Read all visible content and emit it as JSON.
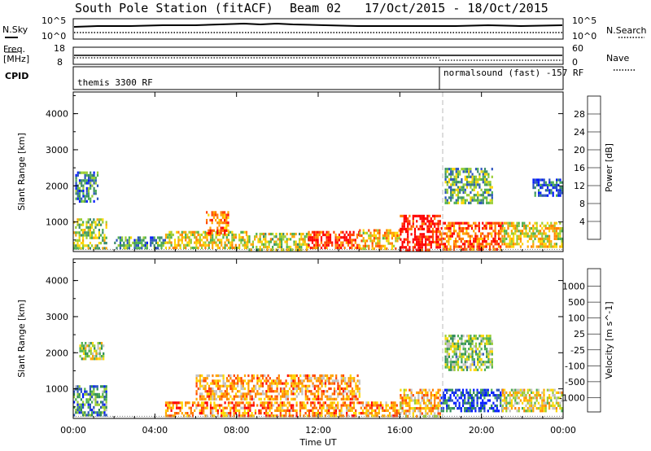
{
  "header": {
    "station": "South Pole Station (fitACF)",
    "beam": "Beam 02",
    "dates": "17/Oct/2015 - 18/Oct/2015"
  },
  "nsky_panel": {
    "left_label": "N.Sky",
    "left_ticks": [
      "10^5",
      "10^0"
    ],
    "right_label": "N.Search",
    "right_ticks": [
      "10^5",
      "10^0"
    ]
  },
  "freq_panel": {
    "left_label_line1": "Freq.",
    "left_label_line2": "[MHz]",
    "left_ticks": [
      "18",
      "8"
    ],
    "right_label": "Nave",
    "right_ticks": [
      "60",
      "0"
    ]
  },
  "cpid_panel": {
    "label": "CPID",
    "mode_1": "themis 3300 RF",
    "mode_2": "normalsound (fast) -157 RF"
  },
  "chart_data": [
    {
      "type": "heatmap",
      "title": "",
      "xlabel": "Time UT",
      "ylabel": "Slant Range [km]",
      "xticks": [
        "00:00",
        "04:00",
        "08:00",
        "12:00",
        "16:00",
        "20:00",
        "00:00"
      ],
      "yticks": [
        "1000",
        "2000",
        "3000",
        "4000"
      ],
      "ylim": [
        180,
        4600
      ],
      "xlim_hours": [
        0,
        24
      ],
      "colorbar_label": "Power [dB]",
      "colorbar_ticks": [
        "4",
        "8",
        "12",
        "16",
        "20",
        "24",
        "28"
      ],
      "colorbar_colors": [
        "#0018ff",
        "#2a52be",
        "#3a8a6a",
        "#4caf50",
        "#9acd32",
        "#ffd700",
        "#ffa500",
        "#ff7f00",
        "#ff4500",
        "#ff0000"
      ],
      "mode_change_hour": 18.1,
      "regions": [
        {
          "t0": 0.0,
          "t1": 1.6,
          "r0": 250,
          "r1": 1100,
          "level": 0.45
        },
        {
          "t0": 0.1,
          "t1": 1.2,
          "r0": 1600,
          "r1": 2400,
          "level": 0.25
        },
        {
          "t0": 2.0,
          "t1": 4.5,
          "r0": 300,
          "r1": 600,
          "level": 0.3
        },
        {
          "t0": 4.5,
          "t1": 8.5,
          "r0": 250,
          "r1": 750,
          "level": 0.55
        },
        {
          "t0": 6.5,
          "t1": 7.6,
          "r0": 700,
          "r1": 1300,
          "level": 0.75
        },
        {
          "t0": 8.5,
          "t1": 11.5,
          "r0": 250,
          "r1": 700,
          "level": 0.5
        },
        {
          "t0": 11.5,
          "t1": 14.0,
          "r0": 250,
          "r1": 750,
          "level": 0.85
        },
        {
          "t0": 14.0,
          "t1": 16.0,
          "r0": 250,
          "r1": 800,
          "level": 0.6
        },
        {
          "t0": 16.0,
          "t1": 18.0,
          "r0": 250,
          "r1": 1200,
          "level": 0.95
        },
        {
          "t0": 18.0,
          "t1": 21.0,
          "r0": 250,
          "r1": 1000,
          "level": 0.8
        },
        {
          "t0": 21.0,
          "t1": 24.0,
          "r0": 300,
          "r1": 1000,
          "level": 0.55
        },
        {
          "t0": 18.2,
          "t1": 20.5,
          "r0": 1500,
          "r1": 2500,
          "level": 0.35
        },
        {
          "t0": 22.5,
          "t1": 24.0,
          "r0": 1700,
          "r1": 2200,
          "level": 0.15
        }
      ]
    },
    {
      "type": "heatmap",
      "title": "",
      "xlabel": "Time UT",
      "ylabel": "Slant Range [km]",
      "xticks": [
        "00:00",
        "04:00",
        "08:00",
        "12:00",
        "16:00",
        "20:00",
        "00:00"
      ],
      "yticks": [
        "1000",
        "2000",
        "3000",
        "4000"
      ],
      "ylim": [
        180,
        4600
      ],
      "xlim_hours": [
        0,
        24
      ],
      "colorbar_label": "Velocity [m s^-1]",
      "colorbar_ticks": [
        "1000",
        "500",
        "100",
        "25",
        "-25",
        "-100",
        "-500",
        "-1000"
      ],
      "colorbar_colors": [
        "#0018ff",
        "#2a52be",
        "#2e8b57",
        "#4caf50",
        "#9acd32",
        "#c0c0c0",
        "#ffd700",
        "#ffa500",
        "#ff7f00",
        "#ff4500",
        "#ff0000"
      ],
      "mode_change_hour": 18.1,
      "regions": [
        {
          "t0": 0.0,
          "t1": 1.6,
          "r0": 250,
          "r1": 1100,
          "level": 0.25
        },
        {
          "t0": 0.3,
          "t1": 1.5,
          "r0": 1800,
          "r1": 2300,
          "level": 0.45
        },
        {
          "t0": 4.5,
          "t1": 16.0,
          "r0": 250,
          "r1": 650,
          "level": 0.75
        },
        {
          "t0": 6.0,
          "t1": 14.0,
          "r0": 700,
          "r1": 1400,
          "level": 0.7
        },
        {
          "t0": 16.0,
          "t1": 18.0,
          "r0": 250,
          "r1": 1000,
          "level": 0.65
        },
        {
          "t0": 18.0,
          "t1": 21.0,
          "r0": 400,
          "r1": 1000,
          "level": 0.1
        },
        {
          "t0": 21.0,
          "t1": 24.0,
          "r0": 400,
          "r1": 1000,
          "level": 0.55
        },
        {
          "t0": 18.2,
          "t1": 20.5,
          "r0": 1500,
          "r1": 2500,
          "level": 0.4
        }
      ]
    }
  ]
}
